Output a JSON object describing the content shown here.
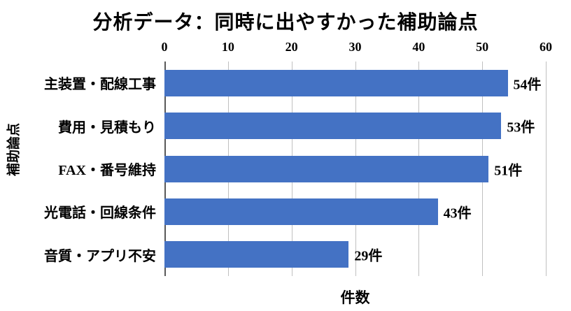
{
  "title": "分析データ：同時に出やすかった補助論点",
  "chart_data": {
    "type": "bar",
    "orientation": "horizontal",
    "title": "分析データ：同時に出やすかった補助論点",
    "categories": [
      "主装置・配線工事",
      "費用・見積もり",
      "FAX・番号維持",
      "光電話・回線条件",
      "音質・アプリ不安"
    ],
    "values": [
      54,
      53,
      51,
      43,
      29
    ],
    "data_labels": [
      "54件",
      "53件",
      "51件",
      "43件",
      "29件"
    ],
    "xlabel": "件数",
    "ylabel": "補助論点",
    "xlim": [
      0,
      60
    ],
    "xticks": [
      0,
      10,
      20,
      30,
      40,
      50,
      60
    ],
    "bar_color": "#4472C4",
    "gridline_color": "#c0c0c0",
    "axis_line_color": "#595959",
    "grid": "vertical",
    "legend": "none"
  }
}
